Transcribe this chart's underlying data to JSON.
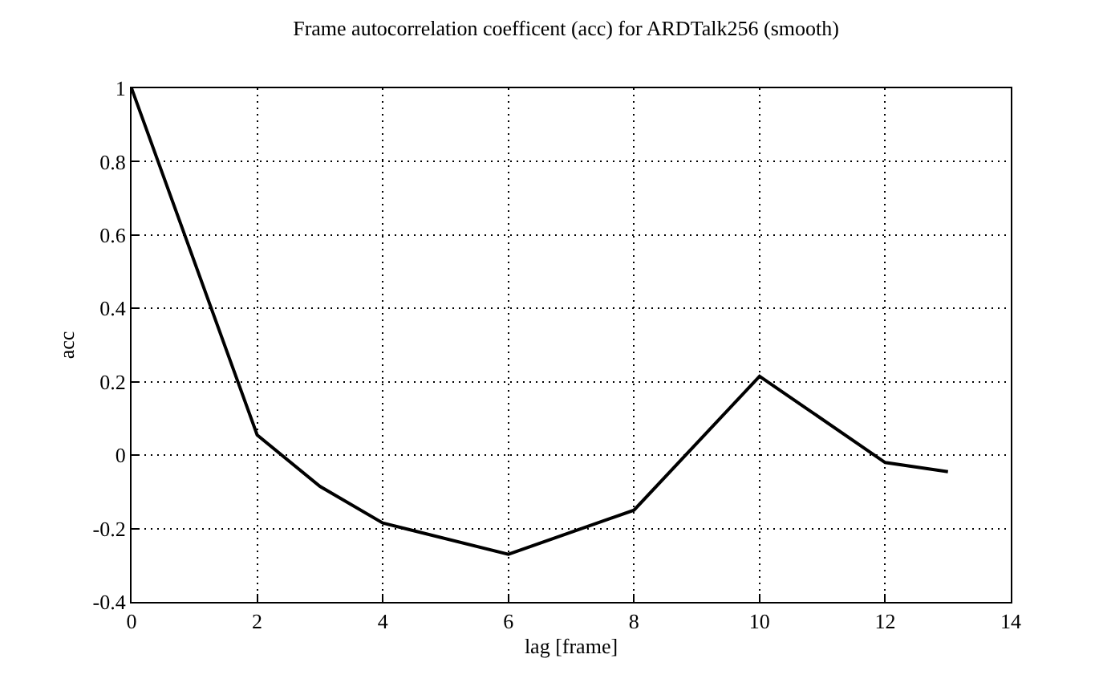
{
  "chart_data": {
    "type": "line",
    "title": "Frame autocorrelation coefficent (acc) for ARDTalk256 (smooth)",
    "xlabel": "lag [frame]",
    "ylabel": "acc",
    "x": [
      0,
      2,
      3,
      4,
      6,
      8,
      10,
      12,
      13
    ],
    "series": [
      {
        "color": "#000000",
        "values": [
          1,
          0.055,
          -0.085,
          -0.185,
          -0.27,
          -0.15,
          0.215,
          -0.02,
          -0.045
        ]
      }
    ],
    "xlim": [
      0,
      14
    ],
    "xticks": [
      0,
      2,
      4,
      6,
      8,
      10,
      12,
      14
    ],
    "ylim": [
      -0.4,
      1
    ],
    "yticks": [
      -0.4,
      -0.2,
      0,
      0.2,
      0.4,
      0.6,
      0.8,
      1
    ],
    "grid": true,
    "marker": "none",
    "line_style": "solid"
  }
}
